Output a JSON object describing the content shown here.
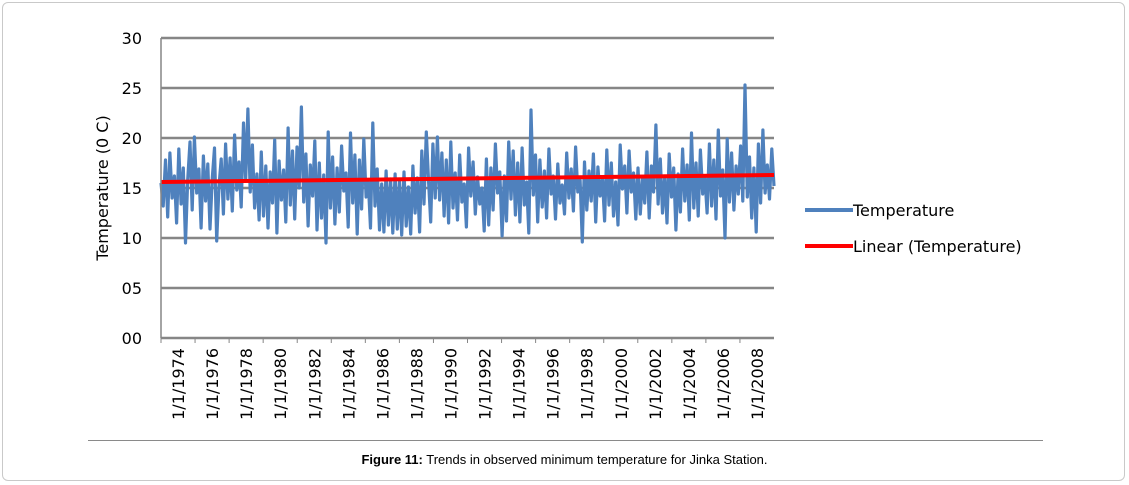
{
  "figure": {
    "caption_label": "Figure 11:",
    "caption_text": " Trends in observed minimum temperature for Jinka Station."
  },
  "colors": {
    "series": "#4f81bd",
    "trend": "#ff0000",
    "grid": "#868686"
  },
  "chart_data": {
    "type": "line",
    "title": "",
    "xlabel": "",
    "ylabel": "Temperature  (0 C)",
    "ylim": [
      0,
      30
    ],
    "yticks": [
      "00",
      "05",
      "10",
      "15",
      "20",
      "25",
      "30"
    ],
    "x_ticklabels": [
      "1/1/1974",
      "1/1/1976",
      "1/1/1978",
      "1/1/1980",
      "1/1/1982",
      "1/1/1984",
      "1/1/1986",
      "1/1/1988",
      "1/1/1990",
      "1/1/1992",
      "1/1/1994",
      "1/1/1996",
      "1/1/1998",
      "1/1/2000",
      "1/1/2002",
      "1/1/2004",
      "1/1/2006",
      "1/1/2008"
    ],
    "grid": true,
    "legend_position": "right",
    "series": [
      {
        "name": "Temperature",
        "x_range": [
          "1/1/1974",
          "12/31/2008"
        ],
        "values": [
          15.5,
          13.2,
          17.8,
          12.1,
          18.5,
          14.0,
          16.2,
          11.5,
          18.9,
          13.4,
          17.0,
          9.5,
          15.8,
          19.6,
          12.8,
          20.1,
          14.5,
          16.9,
          11.0,
          18.2,
          13.7,
          17.4,
          10.9,
          16.0,
          19.0,
          9.7,
          15.2,
          17.9,
          12.4,
          19.4,
          13.9,
          18.0,
          12.7,
          20.3,
          14.8,
          17.6,
          13.1,
          21.5,
          15.9,
          22.9,
          14.6,
          19.3,
          13.0,
          16.4,
          11.8,
          18.6,
          12.2,
          17.2,
          11.0,
          16.6,
          13.5,
          19.8,
          10.5,
          17.7,
          13.8,
          16.8,
          11.6,
          21.0,
          13.3,
          18.7,
          11.9,
          19.1,
          15.0,
          23.1,
          13.6,
          18.4,
          11.2,
          17.3,
          14.2,
          19.7,
          10.8,
          17.5,
          12.0,
          16.3,
          9.5,
          20.6,
          13.0,
          18.1,
          11.4,
          17.0,
          12.6,
          19.2,
          14.7,
          16.5,
          11.1,
          20.5,
          13.5,
          18.3,
          10.4,
          17.8,
          12.9,
          19.9,
          14.1,
          15.6,
          11.0,
          21.5,
          13.2,
          16.9,
          10.8,
          15.4,
          10.6,
          16.7,
          11.3,
          15.9,
          10.5,
          16.4,
          10.9,
          15.8,
          10.3,
          16.6,
          11.2,
          15.1,
          10.4,
          17.2,
          12.5,
          16.0,
          10.6,
          18.7,
          13.4,
          20.6,
          15.8,
          11.6,
          19.4,
          14.0,
          20.1,
          13.8,
          18.5,
          12.2,
          17.8,
          11.5,
          19.6,
          13.0,
          16.5,
          11.8,
          18.3,
          13.6,
          15.4,
          11.1,
          19.0,
          14.2,
          17.6,
          12.4,
          16.1,
          13.4,
          15.0,
          10.7,
          17.9,
          11.3,
          17.0,
          12.8,
          19.4,
          14.5,
          16.6,
          10.2,
          16.2,
          11.7,
          19.6,
          13.9,
          18.7,
          12.3,
          17.5,
          11.6,
          19.0,
          13.3,
          15.6,
          10.5,
          22.8,
          14.3,
          18.3,
          11.6,
          17.8,
          13.1,
          16.7,
          12.0,
          18.9,
          14.4,
          16.2,
          11.9,
          17.4,
          13.5,
          15.3,
          12.4,
          18.5,
          14.0,
          16.9,
          12.7,
          19.1,
          14.6,
          15.8,
          9.6,
          17.6,
          12.8,
          16.7,
          13.7,
          18.4,
          11.6,
          17.1,
          14.2,
          16.0,
          11.7,
          18.8,
          13.3,
          17.5,
          12.2,
          15.6,
          11.3,
          19.3,
          14.9,
          17.2,
          12.5,
          18.7,
          14.6,
          16.5,
          11.9,
          17.0,
          12.4,
          16.1,
          13.5,
          18.6,
          12.0,
          17.2,
          14.6,
          21.3,
          13.4,
          17.9,
          12.5,
          16.2,
          11.5,
          18.4,
          14.1,
          17.0,
          10.8,
          16.4,
          12.6,
          18.9,
          13.7,
          17.3,
          11.8,
          20.5,
          13.0,
          17.5,
          12.2,
          18.8,
          14.4,
          16.1,
          12.5,
          19.4,
          13.2,
          17.8,
          11.9,
          20.8,
          14.2,
          16.8,
          10.0,
          19.9,
          13.6,
          18.5,
          12.8,
          17.2,
          14.4,
          19.2,
          13.7,
          25.3,
          14.1,
          18.1,
          12.0,
          17.0,
          10.6,
          19.4,
          13.5,
          20.8,
          14.5,
          17.3,
          13.9,
          18.9,
          15.2
        ]
      },
      {
        "name": "Linear (Temperature)",
        "type": "trendline",
        "start": 15.6,
        "end": 16.3
      }
    ]
  }
}
